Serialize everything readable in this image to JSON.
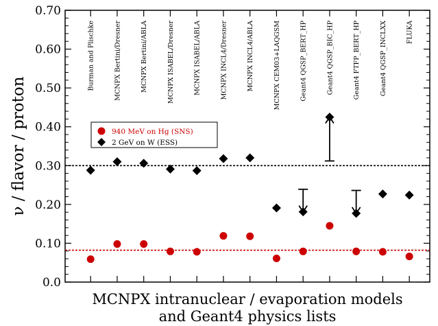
{
  "chart_data": {
    "type": "scatter",
    "title": "",
    "ylabel": "ν / flavor / proton",
    "xlabel_lines": [
      "MCNPX intranuclear / evaporation models",
      "and Geant4 physics lists"
    ],
    "ylim": [
      0.0,
      0.7
    ],
    "yticks": [
      "0.0",
      "0.10",
      "0.20",
      "0.30",
      "0.40",
      "0.50",
      "0.60",
      "0.70"
    ],
    "categories": [
      "Burman and Plischke",
      "MCNPX Bertini/Dresner",
      "MCNPX Bertini/ABLA",
      "MCNPX ISABEL/Dresner",
      "MCNPX ISABEL/ABLA",
      "MCNPX INCL4/Dresner",
      "MCNPX INCL4/ABLA",
      "MCNPX CEM03+LAQGSM",
      "Geant4 QGSP_BERT_HP",
      "Geant4 QGSP_BIC_HP",
      "Geant4 FTFP_BERT_HP",
      "Geant4 QGSP_INCLXX",
      "FLUKA"
    ],
    "series": [
      {
        "name": "940 MeV on Hg (SNS)",
        "marker": "circle",
        "color": "#cc0000",
        "values": [
          0.059,
          0.098,
          0.098,
          0.079,
          0.078,
          0.119,
          0.118,
          0.061,
          0.079,
          0.145,
          0.079,
          0.078,
          0.066
        ]
      },
      {
        "name": "2 GeV on W (ESS)",
        "marker": "diamond",
        "color": "#000000",
        "values": [
          0.288,
          0.31,
          0.306,
          0.291,
          0.287,
          0.318,
          0.32,
          0.191,
          0.181,
          0.425,
          0.177,
          0.227,
          0.224
        ]
      }
    ],
    "reference_lines": [
      {
        "y": 0.3,
        "color": "#000000",
        "style": "dashed"
      },
      {
        "y": 0.082,
        "color": "#cc0000",
        "style": "dashed"
      }
    ],
    "arrows": [
      {
        "category_index": 8,
        "from": 0.181,
        "to": 0.239
      },
      {
        "category_index": 9,
        "from": 0.425,
        "to": 0.312
      },
      {
        "category_index": 10,
        "from": 0.177,
        "to": 0.236
      }
    ],
    "legend_position": "upper-left",
    "grid": false
  }
}
